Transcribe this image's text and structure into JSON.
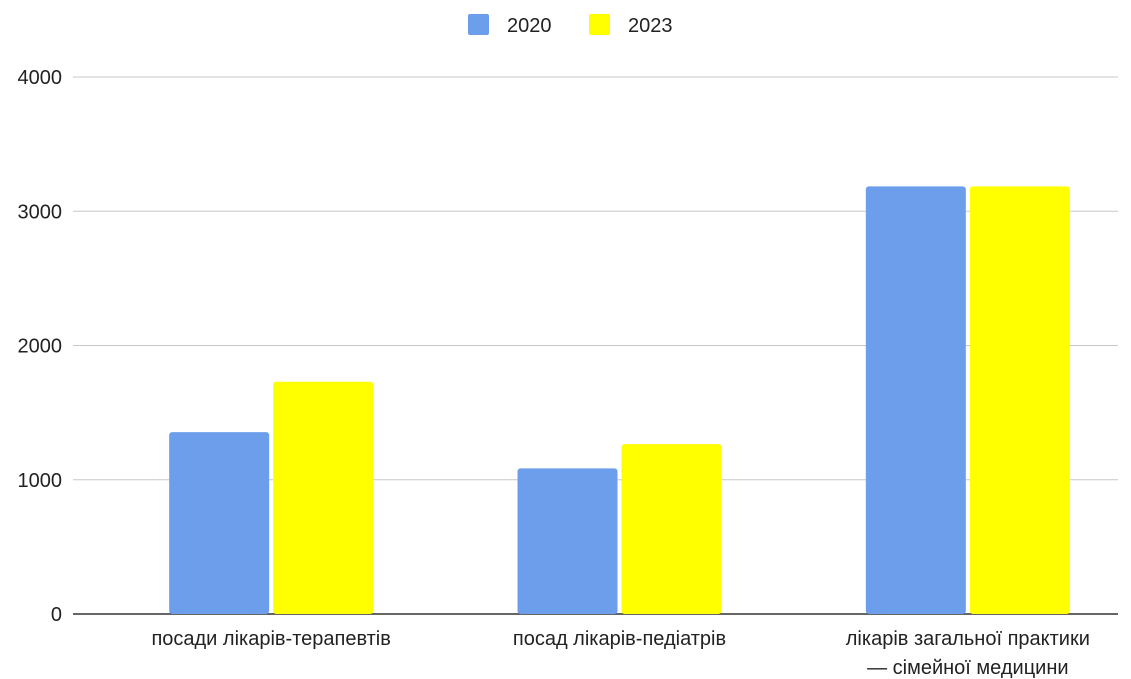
{
  "chart_data": {
    "type": "bar",
    "categories": [
      [
        "посади  лікарів-терапевтів"
      ],
      [
        "посад  лікарів-педіатрів"
      ],
      [
        "лікарів  загальної практики",
        "— сімейної медицини"
      ]
    ],
    "series": [
      {
        "name": "2020",
        "color": "#6d9eeb",
        "values": [
          1355,
          1085,
          3185
        ]
      },
      {
        "name": "2023",
        "color": "#ffff00",
        "values": [
          1730,
          1265,
          3185
        ]
      }
    ],
    "y_ticks": [
      "0",
      "1000",
      "2000",
      "3000",
      "4000"
    ],
    "ylim": [
      0,
      4000
    ],
    "grid": true,
    "legend_position": "top-center",
    "title": "",
    "xlabel": "",
    "ylabel": ""
  }
}
